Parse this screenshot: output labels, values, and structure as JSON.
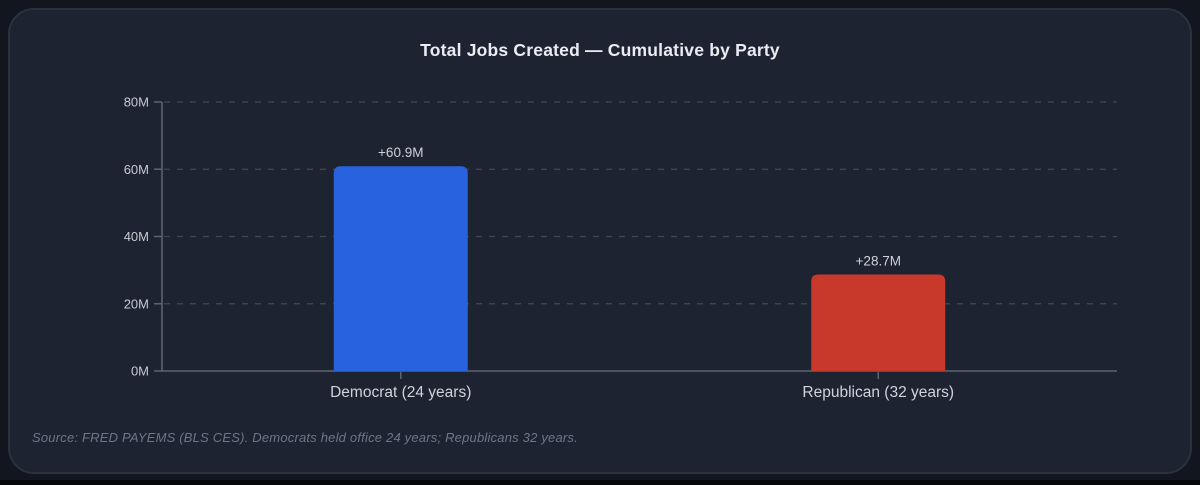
{
  "chart_data": {
    "type": "bar",
    "title": "Total Jobs Created — Cumulative by Party",
    "categories": [
      "Democrat (24 years)",
      "Republican (32 years)"
    ],
    "values": [
      60.9,
      28.7
    ],
    "value_labels": [
      "+60.9M",
      "+28.7M"
    ],
    "value_unit": "millions of jobs",
    "bar_colors": [
      "#2862df",
      "#c9392b"
    ],
    "xlabel": "",
    "ylabel": "",
    "ylim": [
      0,
      80
    ],
    "yticks": [
      0,
      20,
      40,
      60,
      80
    ],
    "ytick_labels": [
      "0M",
      "20M",
      "40M",
      "60M",
      "80M"
    ],
    "grid": "horizontal dashed",
    "legend": "none"
  },
  "footer": {
    "source_note": "Source: FRED PAYEMS (BLS CES). Democrats held office 24 years; Republicans 32 years."
  },
  "theme": {
    "card_bg": "#1d2330",
    "outer_bg": "#12161f",
    "card_border": "#2a3240",
    "grid_color": "#404856",
    "axis_color": "#5c6472",
    "title_color": "#e9ecf1",
    "ytick_label_color": "#c5cad4",
    "value_label_color": "#ccd1da",
    "category_label_color": "#ced3dc",
    "source_color": "#6d7689"
  }
}
